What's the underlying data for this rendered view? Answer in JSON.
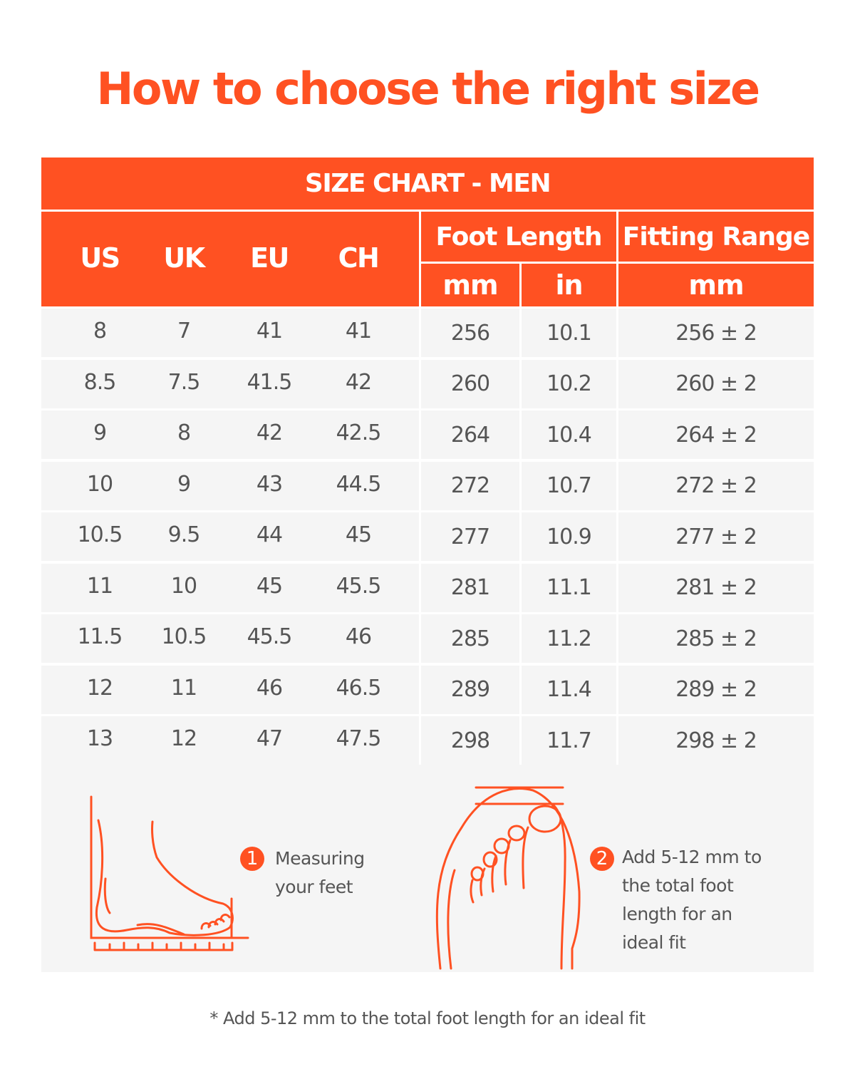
{
  "title": "How to choose the right size",
  "table": {
    "caption": "SIZE CHART - MEN",
    "headers": {
      "us": "US",
      "uk": "UK",
      "eu": "EU",
      "ch": "CH",
      "foot_length": "Foot Length",
      "fitting_range": "Fitting Range",
      "foot_mm": "mm",
      "foot_in": "in",
      "fit_mm": "mm"
    },
    "rows": [
      [
        "8",
        "7",
        "41",
        "41",
        "256",
        "10.1",
        "256 ± 2"
      ],
      [
        "8.5",
        "7.5",
        "41.5",
        "42",
        "260",
        "10.2",
        "260 ± 2"
      ],
      [
        "9",
        "8",
        "42",
        "42.5",
        "264",
        "10.4",
        "264 ± 2"
      ],
      [
        "10",
        "9",
        "43",
        "44.5",
        "272",
        "10.7",
        "272 ± 2"
      ],
      [
        "10.5",
        "9.5",
        "44",
        "45",
        "277",
        "10.9",
        "277 ± 2"
      ],
      [
        "11",
        "10",
        "45",
        "45.5",
        "281",
        "11.1",
        "281 ± 2"
      ],
      [
        "11.5",
        "10.5",
        "45.5",
        "46",
        "285",
        "11.2",
        "285 ± 2"
      ],
      [
        "12",
        "11",
        "46",
        "46.5",
        "289",
        "11.4",
        "289 ± 2"
      ],
      [
        "13",
        "12",
        "47",
        "47.5",
        "298",
        "11.7",
        "298 ± 2"
      ]
    ]
  },
  "steps": [
    {
      "number": "1",
      "lines": [
        "Measuring",
        "your feet"
      ],
      "icon": "foot-side-ruler-icon"
    },
    {
      "number": "2",
      "lines": [
        "Add 5-12 mm to",
        "the total foot",
        "length for an",
        "ideal fit"
      ],
      "icon": "foot-top-toes-icon"
    }
  ],
  "footnote": "* Add 5-12 mm to the total foot length for an ideal fit",
  "colors": {
    "accent": "#FF5122",
    "row_bg": "#F5F5F5",
    "text": "#555555"
  }
}
